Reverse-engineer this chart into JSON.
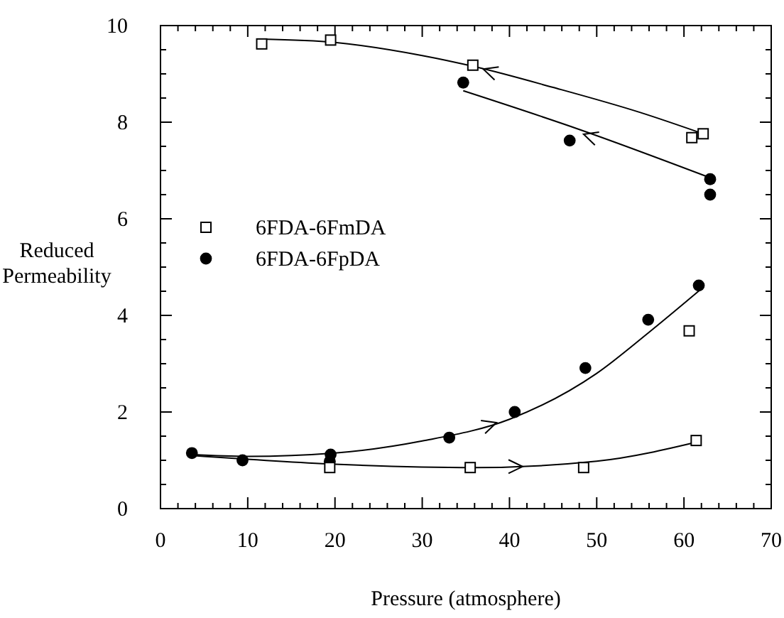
{
  "chart_data": {
    "type": "scatter",
    "xlabel": "Pressure (atmosphere)",
    "ylabel": "Reduced Permeability",
    "xlim": [
      0,
      70
    ],
    "ylim": [
      0,
      10
    ],
    "xticks": [
      0,
      {
        "value": 2,
        "label": null
      },
      {
        "value": 4,
        "label": null
      },
      {
        "value": 6,
        "label": null
      },
      {
        "value": 8,
        "label": null
      },
      10,
      {
        "value": 12,
        "label": null
      },
      {
        "value": 14,
        "label": null
      },
      {
        "value": 16,
        "label": null
      },
      {
        "value": 18,
        "label": null
      },
      20,
      {
        "value": 22,
        "label": null
      },
      {
        "value": 24,
        "label": null
      },
      {
        "value": 26,
        "label": null
      },
      {
        "value": 28,
        "label": null
      },
      30,
      {
        "value": 32,
        "label": null
      },
      {
        "value": 34,
        "label": null
      },
      {
        "value": 36,
        "label": null
      },
      {
        "value": 38,
        "label": null
      },
      40,
      {
        "value": 42,
        "label": null
      },
      {
        "value": 44,
        "label": null
      },
      {
        "value": 46,
        "label": null
      },
      {
        "value": 48,
        "label": null
      },
      50,
      {
        "value": 52,
        "label": null
      },
      {
        "value": 54,
        "label": null
      },
      {
        "value": 56,
        "label": null
      },
      {
        "value": 58,
        "label": null
      },
      60,
      {
        "value": 62,
        "label": null
      },
      {
        "value": 64,
        "label": null
      },
      {
        "value": 66,
        "label": null
      },
      {
        "value": 68,
        "label": null
      },
      70
    ],
    "yticks": [
      0,
      {
        "value": 0.5,
        "label": null
      },
      {
        "value": 1,
        "label": null
      },
      {
        "value": 1.5,
        "label": null
      },
      2,
      {
        "value": 2.5,
        "label": null
      },
      {
        "value": 3,
        "label": null
      },
      {
        "value": 3.5,
        "label": null
      },
      4,
      {
        "value": 4.5,
        "label": null
      },
      {
        "value": 5,
        "label": null
      },
      {
        "value": 5.5,
        "label": null
      },
      6,
      {
        "value": 6.5,
        "label": null
      },
      {
        "value": 7,
        "label": null
      },
      {
        "value": 7.5,
        "label": null
      },
      8,
      {
        "value": 8.5,
        "label": null
      },
      {
        "value": 9,
        "label": null
      },
      {
        "value": 9.5,
        "label": null
      },
      10
    ],
    "grid": false,
    "legend": "left",
    "series": [
      {
        "name": "6FDA-6FmDA",
        "color": "#000000",
        "marker": "square",
        "x": [
          11.6,
          19.5,
          19.4,
          35.8,
          35.5,
          48.5,
          60.9,
          62.2,
          60.6,
          61.4
        ],
        "values": [
          9.62,
          9.7,
          0.85,
          9.18,
          0.85,
          0.85,
          7.68,
          7.76,
          3.68,
          1.41
        ]
      },
      {
        "name": "6FDA-6FpDA",
        "color": "#000000",
        "marker": "circle",
        "x": [
          3.6,
          9.4,
          19.5,
          19.4,
          33.1,
          34.7,
          40.6,
          46.9,
          48.7,
          55.9,
          61.7,
          63,
          63
        ],
        "values": [
          1.15,
          1.0,
          1.12,
          0.98,
          1.47,
          8.82,
          2.0,
          7.62,
          2.91,
          3.91,
          4.62,
          6.82,
          6.5
        ]
      },
      {
        "type": "line",
        "color": "#000000",
        "marker": "none",
        "x": [
          11.6,
          20,
          30,
          36,
          45,
          55,
          62.2
        ],
        "values": [
          9.72,
          9.65,
          9.38,
          9.15,
          8.72,
          8.2,
          7.76
        ]
      },
      {
        "type": "line",
        "color": "#000000",
        "marker": "none",
        "x": [
          34.7,
          48,
          63
        ],
        "values": [
          8.65,
          7.85,
          6.85
        ]
      },
      {
        "type": "line",
        "color": "#000000",
        "marker": "none",
        "x": [
          3.6,
          10,
          20,
          30,
          40,
          50,
          56,
          62
        ],
        "values": [
          1.12,
          1.08,
          1.15,
          1.4,
          1.85,
          2.8,
          3.65,
          4.55
        ]
      },
      {
        "type": "line",
        "color": "#000000",
        "marker": "none",
        "x": [
          3.6,
          20,
          36,
          50,
          62
        ],
        "values": [
          1.1,
          0.92,
          0.85,
          0.98,
          1.4
        ]
      }
    ]
  }
}
